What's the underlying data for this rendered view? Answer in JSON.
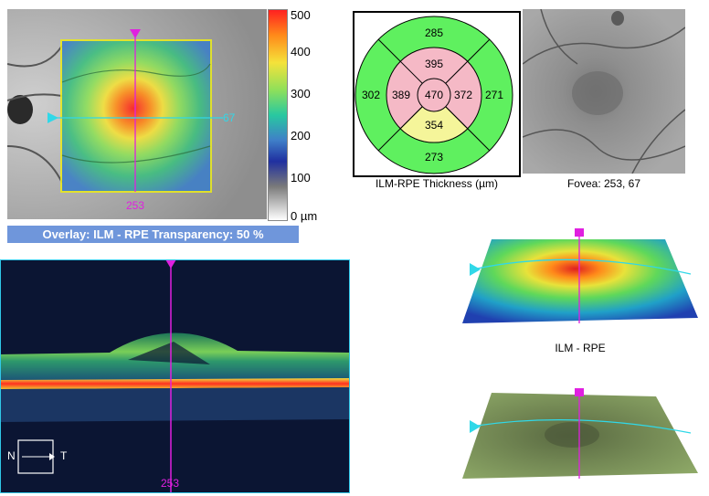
{
  "overlay": {
    "caption": "Overlay: ILM - RPE  Transparency: 50 %",
    "vertical_marker": "253",
    "horizontal_marker": "67"
  },
  "color_scale": {
    "ticks": [
      "500",
      "400",
      "300",
      "200",
      "100",
      "0 µm"
    ]
  },
  "thickness_map": {
    "center": "470",
    "inner_superior": "395",
    "inner_nasal": "389",
    "inner_temporal": "372",
    "inner_inferior": "354",
    "outer_superior": "285",
    "outer_nasal": "302",
    "outer_temporal": "271",
    "outer_inferior": "273",
    "caption": "ILM-RPE Thickness (µm)"
  },
  "fovea": {
    "caption": "Fovea: 253, 67"
  },
  "bscan": {
    "marker_label": "253",
    "orientation_left": "N",
    "orientation_right": "T"
  },
  "surface_3d": {
    "caption": "ILM - RPE"
  },
  "colors": {
    "caption_bar": "#6f96db",
    "marker_magenta": "#e020e0",
    "marker_cyan": "#30d8e8",
    "map_green": "#5ff05f",
    "map_pink": "#f5b9c6",
    "map_yellow": "#f5f59a"
  }
}
